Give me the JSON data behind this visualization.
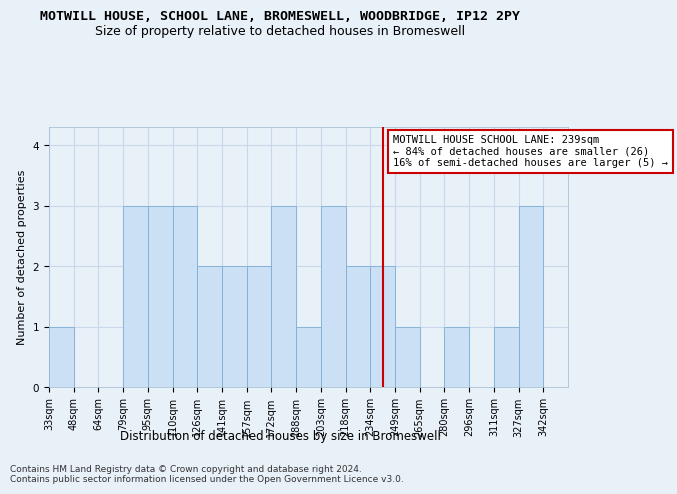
{
  "title": "MOTWILL HOUSE, SCHOOL LANE, BROMESWELL, WOODBRIDGE, IP12 2PY",
  "subtitle": "Size of property relative to detached houses in Bromeswell",
  "xlabel": "Distribution of detached houses by size in Bromeswell",
  "ylabel": "Number of detached properties",
  "bins": [
    "33sqm",
    "48sqm",
    "64sqm",
    "79sqm",
    "95sqm",
    "110sqm",
    "126sqm",
    "141sqm",
    "157sqm",
    "172sqm",
    "188sqm",
    "203sqm",
    "218sqm",
    "234sqm",
    "249sqm",
    "265sqm",
    "280sqm",
    "296sqm",
    "311sqm",
    "327sqm",
    "342sqm"
  ],
  "bar_values": [
    1,
    0,
    0,
    3,
    3,
    3,
    2,
    2,
    2,
    3,
    1,
    3,
    2,
    2,
    1,
    0,
    1,
    0,
    1,
    3,
    0
  ],
  "bar_color": "#cce0f5",
  "bar_edge_color": "#7bafd4",
  "grid_color": "#c8d8ea",
  "background_color": "#e8f0f8",
  "vline_x": 13.5,
  "vline_color": "#cc0000",
  "annotation_text": "MOTWILL HOUSE SCHOOL LANE: 239sqm\n← 84% of detached houses are smaller (26)\n16% of semi-detached houses are larger (5) →",
  "annotation_box_color": "#ffffff",
  "annotation_box_edge": "#cc0000",
  "ylim": [
    0,
    4.3
  ],
  "yticks": [
    0,
    1,
    2,
    3,
    4
  ],
  "footer": "Contains HM Land Registry data © Crown copyright and database right 2024.\nContains public sector information licensed under the Open Government Licence v3.0.",
  "title_fontsize": 9.5,
  "subtitle_fontsize": 9,
  "axis_label_fontsize": 8.5,
  "tick_fontsize": 7,
  "annotation_fontsize": 7.5,
  "footer_fontsize": 6.5,
  "ylabel_fontsize": 8
}
